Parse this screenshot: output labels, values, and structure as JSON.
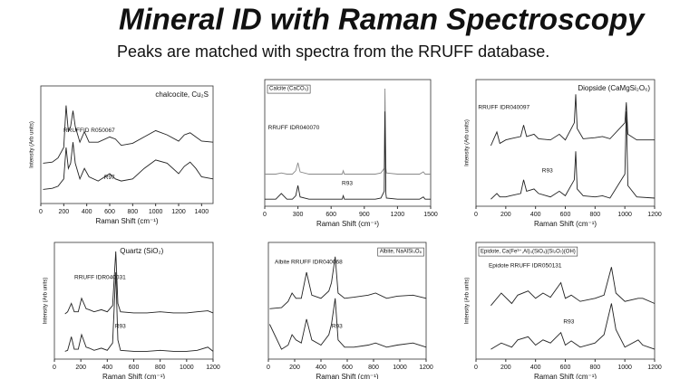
{
  "header": {
    "title": "Mineral ID with Raman Spectroscopy",
    "subtitle": "Peaks are matched with spectra from the RRUFF database."
  },
  "chart_data": [
    {
      "type": "line",
      "title": "chalcocite, Cu₂S",
      "xlabel": "Raman Shift (cm⁻¹)",
      "ylabel": "Intensity (Arb units)",
      "x": [
        20,
        100,
        150,
        200,
        220,
        240,
        260,
        280,
        300,
        340,
        380,
        420,
        500,
        600,
        650,
        700,
        800,
        900,
        1000,
        1100,
        1200,
        1250,
        1300,
        1350,
        1400,
        1500
      ],
      "series": [
        {
          "name": "RRUFFID R050067",
          "color": "#222222",
          "values": [
            35,
            36,
            40,
            50,
            90,
            65,
            70,
            85,
            70,
            55,
            65,
            55,
            55,
            60,
            58,
            52,
            54,
            60,
            66,
            62,
            56,
            62,
            64,
            60,
            56,
            55
          ]
        },
        {
          "name": "R97",
          "color": "#222222",
          "values": [
            10,
            11,
            13,
            20,
            50,
            30,
            35,
            55,
            35,
            20,
            30,
            22,
            18,
            25,
            20,
            18,
            20,
            30,
            38,
            35,
            25,
            32,
            36,
            30,
            22,
            20
          ]
        }
      ],
      "xlim": [
        0,
        1500
      ],
      "xticks": [
        0,
        200,
        400,
        600,
        800,
        1000,
        1200,
        1400
      ],
      "ylim": [
        0,
        100
      ]
    },
    {
      "type": "line",
      "title": "Calcite (CaCO₃)",
      "xlabel": "Raman Shift (cm⁻¹)",
      "x": [
        0,
        100,
        150,
        200,
        250,
        280,
        300,
        320,
        400,
        600,
        700,
        710,
        720,
        800,
        1000,
        1050,
        1080,
        1087,
        1095,
        1100,
        1200,
        1400,
        1434,
        1450,
        1500
      ],
      "series": [
        {
          "name": "RRUFF IDR040070",
          "color": "#888888",
          "values": [
            25,
            25,
            26,
            25,
            25,
            28,
            35,
            27,
            25,
            25,
            25,
            28,
            25,
            25,
            25,
            26,
            30,
            100,
            30,
            26,
            25,
            25,
            27,
            25,
            25
          ]
        },
        {
          "name": "R93",
          "color": "#222222",
          "values": [
            3,
            3,
            8,
            3,
            3,
            6,
            15,
            5,
            3,
            3,
            3,
            6,
            3,
            3,
            3,
            4,
            10,
            80,
            8,
            4,
            3,
            3,
            5,
            3,
            3
          ]
        }
      ],
      "xlim": [
        0,
        1500
      ],
      "xticks": [
        0,
        300,
        600,
        900,
        1200,
        1500
      ],
      "ylim": [
        0,
        100
      ]
    },
    {
      "type": "line",
      "title": "Diopside (CaMgSi₂O₆)",
      "xlabel": "Raman Shift (cm⁻¹)",
      "ylabel": "Intensity (Arb units)",
      "x": [
        100,
        140,
        160,
        200,
        230,
        300,
        320,
        340,
        390,
        420,
        500,
        560,
        600,
        660,
        670,
        680,
        720,
        800,
        850,
        900,
        1000,
        1010,
        1020,
        1080,
        1200
      ],
      "series": [
        {
          "name": "RRUFF IDR040097",
          "color": "#222222",
          "values": [
            50,
            62,
            52,
            55,
            56,
            58,
            68,
            58,
            60,
            56,
            55,
            60,
            55,
            70,
            95,
            65,
            56,
            57,
            58,
            56,
            70,
            88,
            60,
            55,
            55
          ]
        },
        {
          "name": "R93",
          "color": "#222222",
          "values": [
            3,
            8,
            5,
            5,
            6,
            8,
            20,
            10,
            12,
            8,
            5,
            10,
            6,
            20,
            45,
            12,
            6,
            5,
            6,
            4,
            25,
            80,
            15,
            5,
            4
          ]
        }
      ],
      "xlim": [
        0,
        1200
      ],
      "xticks": [
        0,
        200,
        400,
        600,
        800,
        1000,
        1200
      ],
      "ylim": [
        0,
        100
      ]
    },
    {
      "type": "line",
      "title": "Quartz (SiO₂)",
      "xlabel": "Raman Shift (cm⁻¹)",
      "ylabel": "Intensity (Arb units)",
      "x": [
        80,
        100,
        128,
        150,
        180,
        206,
        240,
        264,
        300,
        355,
        400,
        440,
        464,
        480,
        500,
        600,
        700,
        800,
        900,
        1000,
        1080,
        1160,
        1200
      ],
      "series": [
        {
          "name": "RRUFF IDR040031",
          "color": "#222222",
          "values": [
            40,
            42,
            50,
            42,
            42,
            55,
            45,
            44,
            42,
            44,
            42,
            48,
            100,
            50,
            42,
            41,
            41,
            42,
            41,
            41,
            42,
            43,
            41
          ]
        },
        {
          "name": "R93",
          "color": "#222222",
          "values": [
            4,
            5,
            18,
            6,
            6,
            20,
            8,
            7,
            5,
            7,
            5,
            12,
            80,
            15,
            5,
            4,
            4,
            5,
            4,
            4,
            5,
            8,
            4
          ]
        }
      ],
      "xlim": [
        0,
        1200
      ],
      "xticks": [
        0,
        200,
        400,
        600,
        800,
        1000,
        1200
      ],
      "ylim": [
        0,
        100
      ]
    },
    {
      "type": "line",
      "title": "Albite, NaAlSi₃O₈",
      "xlabel": "Raman Shift (cm⁻¹)",
      "x": [
        10,
        100,
        150,
        180,
        210,
        250,
        290,
        330,
        400,
        460,
        480,
        508,
        530,
        580,
        650,
        760,
        815,
        900,
        980,
        1100,
        1200
      ],
      "series": [
        {
          "name": "Albite RRUFF IDR040068",
          "color": "#222222",
          "values": [
            45,
            46,
            52,
            60,
            55,
            55,
            80,
            58,
            55,
            62,
            70,
            95,
            60,
            55,
            56,
            58,
            60,
            55,
            57,
            58,
            55
          ]
        },
        {
          "name": "R93",
          "color": "#222222",
          "values": [
            30,
            6,
            10,
            20,
            15,
            12,
            35,
            15,
            10,
            20,
            30,
            55,
            15,
            8,
            8,
            10,
            12,
            8,
            10,
            12,
            8
          ]
        }
      ],
      "xlim": [
        0,
        1200
      ],
      "xticks": [
        0,
        200,
        400,
        600,
        800,
        1000,
        1200
      ],
      "ylim": [
        0,
        100
      ]
    },
    {
      "type": "line",
      "title": "Epidote, Ca(Fe³⁺,Al)₃(SiO₄)(Si₂O₇)(OH)",
      "xlabel": "Raman Shift (cm⁻¹)",
      "ylabel": "Intensity (Arb units)",
      "x": [
        100,
        170,
        240,
        280,
        350,
        400,
        450,
        500,
        570,
        600,
        640,
        700,
        800,
        860,
        910,
        940,
        1000,
        1090,
        1120,
        1200
      ],
      "series": [
        {
          "name": "Epidote RRUFF IDR050131",
          "color": "#222222",
          "values": [
            48,
            60,
            50,
            58,
            62,
            55,
            60,
            56,
            70,
            55,
            58,
            52,
            55,
            58,
            85,
            60,
            52,
            55,
            55,
            50
          ]
        },
        {
          "name": "R93",
          "color": "#222222",
          "values": [
            6,
            12,
            8,
            15,
            18,
            10,
            15,
            12,
            22,
            10,
            14,
            8,
            12,
            20,
            50,
            25,
            8,
            15,
            10,
            6
          ]
        }
      ],
      "xlim": [
        0,
        1200
      ],
      "xticks": [
        0,
        200,
        400,
        600,
        800,
        1000,
        1200
      ],
      "ylim": [
        0,
        100
      ]
    }
  ]
}
